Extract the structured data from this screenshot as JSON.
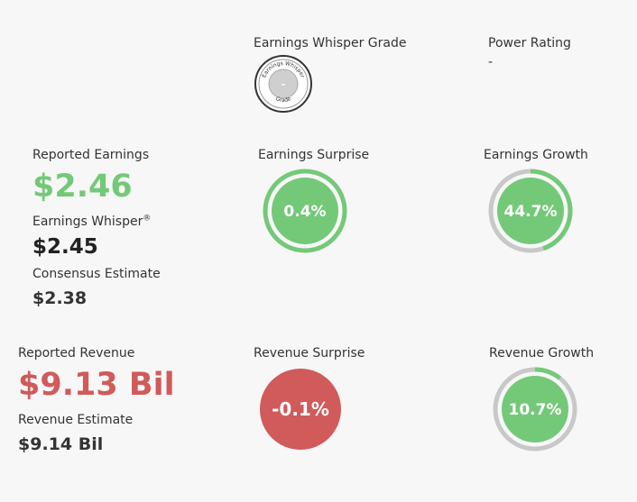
{
  "grade": {
    "title": "Earnings Whisper Grade",
    "badge_top_text": "Earnings Whisper",
    "badge_bottom_text": "Grade",
    "value": "-"
  },
  "power_rating": {
    "title": "Power Rating",
    "value": "-"
  },
  "earnings": {
    "reported_label": "Reported Earnings",
    "reported_value": "$2.46",
    "whisper_label": "Earnings Whisper",
    "whisper_sup": "®",
    "whisper_value": "$2.45",
    "consensus_label": "Consensus Estimate",
    "consensus_value": "$2.38"
  },
  "earnings_surprise": {
    "title": "Earnings Surprise",
    "value": "0.4%",
    "percent": 0.4,
    "color": "#73c978"
  },
  "earnings_growth": {
    "title": "Earnings Growth",
    "value": "44.7%",
    "percent": 44.7,
    "color": "#73c978"
  },
  "revenue": {
    "reported_label": "Reported Revenue",
    "reported_value": "$9.13 Bil",
    "estimate_label": "Revenue Estimate",
    "estimate_value": "$9.14 Bil"
  },
  "revenue_surprise": {
    "title": "Revenue Surprise",
    "value": "-0.1%",
    "percent": -0.1,
    "color": "#d15a5a"
  },
  "revenue_growth": {
    "title": "Revenue Growth",
    "value": "10.7%",
    "percent": 10.7,
    "color": "#73c978"
  },
  "colors": {
    "green": "#73c978",
    "red": "#d15a5a",
    "ring_gray": "#c8c8c8",
    "background": "#f7f7f7"
  }
}
